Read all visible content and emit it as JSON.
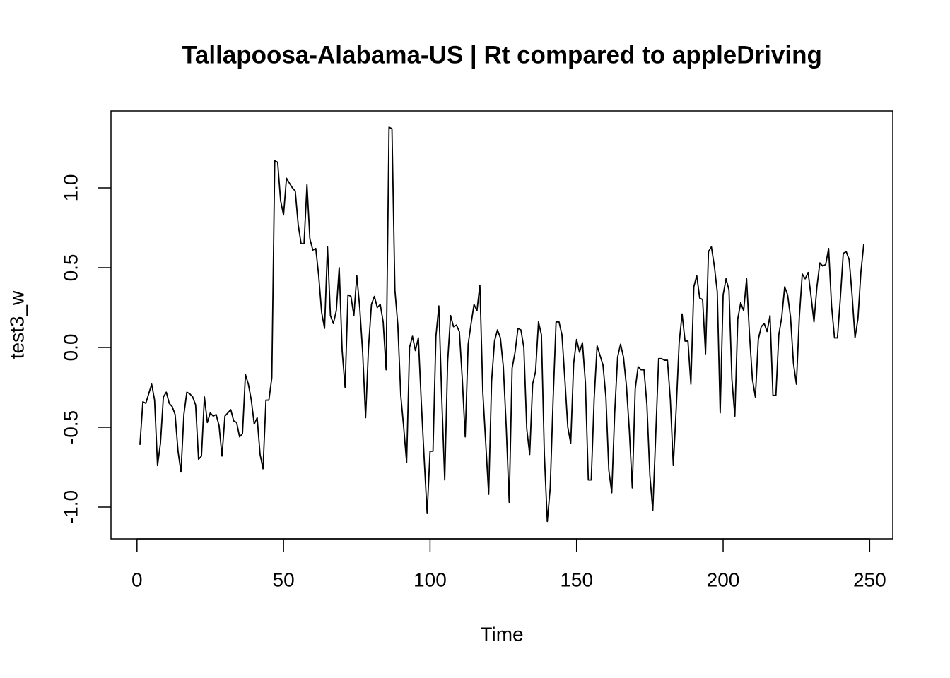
{
  "chart_data": {
    "type": "line",
    "title": "Tallapoosa-Alabama-US | Rt compared to appleDriving",
    "x_label": "Time",
    "y_label": "test3_w",
    "color": "#000000",
    "x": [
      1,
      2,
      3,
      4,
      5,
      6,
      7,
      8,
      9,
      10,
      11,
      12,
      13,
      14,
      15,
      16,
      17,
      18,
      19,
      20,
      21,
      22,
      23,
      24,
      25,
      26,
      27,
      28,
      29,
      30,
      31,
      32,
      33,
      34,
      35,
      36,
      37,
      38,
      39,
      40,
      41,
      42,
      43,
      44,
      45,
      46,
      47,
      48,
      49,
      50,
      51,
      52,
      53,
      54,
      55,
      56,
      57,
      58,
      59,
      60,
      61,
      62,
      63,
      64,
      65,
      66,
      67,
      68,
      69,
      70,
      71,
      72,
      73,
      74,
      75,
      76,
      77,
      78,
      79,
      80,
      81,
      82,
      83,
      84,
      85,
      86,
      87,
      88,
      89,
      90,
      91,
      92,
      93,
      94,
      95,
      96,
      97,
      98,
      99,
      100,
      101,
      102,
      103,
      104,
      105,
      106,
      107,
      108,
      109,
      110,
      111,
      112,
      113,
      114,
      115,
      116,
      117,
      118,
      119,
      120,
      121,
      122,
      123,
      124,
      125,
      126,
      127,
      128,
      129,
      130,
      131,
      132,
      133,
      134,
      135,
      136,
      137,
      138,
      139,
      140,
      141,
      142,
      143,
      144,
      145,
      146,
      147,
      148,
      149,
      150,
      151,
      152,
      153,
      154,
      155,
      156,
      157,
      158,
      159,
      160,
      161,
      162,
      163,
      164,
      165,
      166,
      167,
      168,
      169,
      170,
      171,
      172,
      173,
      174,
      175,
      176,
      177,
      178,
      179,
      180,
      181,
      182,
      183,
      184,
      185,
      186,
      187,
      188,
      189,
      190,
      191,
      192,
      193,
      194,
      195,
      196,
      197,
      198,
      199,
      200,
      201,
      202,
      203,
      204,
      205,
      206,
      207,
      208,
      209,
      210,
      211,
      212,
      213,
      214,
      215,
      216,
      217,
      218,
      219,
      220,
      221,
      222,
      223,
      224,
      225,
      226,
      227,
      228,
      229,
      230,
      231,
      232,
      233,
      234,
      235,
      236,
      237,
      238,
      239,
      240,
      241,
      242,
      243,
      244,
      245,
      246,
      247,
      248
    ],
    "values": [
      -0.61,
      -0.34,
      -0.35,
      -0.29,
      -0.23,
      -0.33,
      -0.74,
      -0.6,
      -0.31,
      -0.28,
      -0.35,
      -0.37,
      -0.42,
      -0.65,
      -0.78,
      -0.42,
      -0.28,
      -0.29,
      -0.31,
      -0.36,
      -0.7,
      -0.68,
      -0.31,
      -0.47,
      -0.41,
      -0.43,
      -0.42,
      -0.49,
      -0.68,
      -0.43,
      -0.41,
      -0.39,
      -0.46,
      -0.47,
      -0.56,
      -0.54,
      -0.17,
      -0.23,
      -0.33,
      -0.48,
      -0.44,
      -0.67,
      -0.76,
      -0.33,
      -0.33,
      -0.19,
      1.17,
      1.16,
      0.92,
      0.83,
      1.06,
      1.03,
      1.0,
      0.98,
      0.77,
      0.65,
      0.65,
      1.02,
      0.68,
      0.61,
      0.62,
      0.45,
      0.22,
      0.12,
      0.63,
      0.2,
      0.15,
      0.23,
      0.5,
      -0.02,
      -0.25,
      0.33,
      0.32,
      0.2,
      0.45,
      0.25,
      -0.03,
      -0.44,
      0.0,
      0.27,
      0.32,
      0.25,
      0.27,
      0.16,
      -0.14,
      1.38,
      1.37,
      0.36,
      0.14,
      -0.3,
      -0.5,
      -0.72,
      0.0,
      0.07,
      -0.02,
      0.06,
      -0.34,
      -0.7,
      -1.04,
      -0.65,
      -0.65,
      0.07,
      0.26,
      -0.32,
      -0.83,
      -0.09,
      0.2,
      0.13,
      0.14,
      0.1,
      -0.2,
      -0.56,
      0.02,
      0.15,
      0.27,
      0.23,
      0.39,
      -0.28,
      -0.6,
      -0.92,
      -0.21,
      0.04,
      0.11,
      0.06,
      -0.12,
      -0.5,
      -0.97,
      -0.13,
      -0.03,
      0.12,
      0.11,
      0.0,
      -0.51,
      -0.67,
      -0.23,
      -0.15,
      0.16,
      0.08,
      -0.67,
      -1.09,
      -0.88,
      -0.32,
      0.16,
      0.16,
      0.08,
      -0.2,
      -0.5,
      -0.6,
      -0.1,
      0.05,
      -0.03,
      0.03,
      -0.22,
      -0.83,
      -0.83,
      -0.32,
      0.01,
      -0.05,
      -0.11,
      -0.31,
      -0.77,
      -0.91,
      -0.41,
      -0.06,
      0.02,
      -0.06,
      -0.24,
      -0.52,
      -0.88,
      -0.26,
      -0.12,
      -0.14,
      -0.14,
      -0.36,
      -0.8,
      -1.02,
      -0.55,
      -0.07,
      -0.07,
      -0.08,
      -0.08,
      -0.33,
      -0.74,
      -0.38,
      0.03,
      0.21,
      0.04,
      0.04,
      -0.23,
      0.38,
      0.45,
      0.31,
      0.3,
      -0.04,
      0.6,
      0.63,
      0.51,
      0.35,
      -0.41,
      0.33,
      0.43,
      0.36,
      -0.2,
      -0.43,
      0.18,
      0.28,
      0.23,
      0.43,
      0.08,
      -0.2,
      -0.31,
      0.05,
      0.13,
      0.15,
      0.1,
      0.2,
      -0.3,
      -0.3,
      0.08,
      0.19,
      0.38,
      0.33,
      0.19,
      -0.1,
      -0.23,
      0.19,
      0.46,
      0.43,
      0.47,
      0.32,
      0.16,
      0.38,
      0.53,
      0.51,
      0.52,
      0.62,
      0.26,
      0.06,
      0.06,
      0.31,
      0.59,
      0.6,
      0.55,
      0.33,
      0.06,
      0.18,
      0.47,
      0.65
    ],
    "xlim": [
      -8.88,
      257.88
    ],
    "xticks": [
      0,
      50,
      100,
      150,
      200,
      250
    ],
    "ylim": [
      -1.199,
      1.482
    ],
    "yticks": [
      {
        "value": -1,
        "label": "-1.0"
      },
      -0.5,
      {
        "value": 0,
        "label": "0.0"
      },
      0.5,
      {
        "value": 1,
        "label": "1.0"
      }
    ]
  }
}
